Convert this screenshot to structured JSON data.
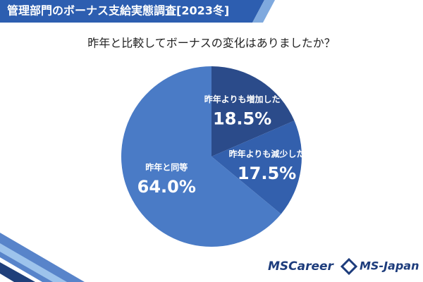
{
  "chart_data": {
    "type": "pie",
    "title": "管理部門のボーナス支給実態調査[2023冬]",
    "subtitle": "昨年と比較してボーナスの変化はありましたか？",
    "categories": [
      "昨年よりも増加した",
      "昨年よりも減少した",
      "昨年と同等"
    ],
    "values": [
      18.5,
      17.5,
      64.0
    ],
    "value_labels": [
      "18.5%",
      "17.5%",
      "64.0%"
    ],
    "colors": [
      "#2b4b8a",
      "#3360ad",
      "#4a7bc6"
    ]
  },
  "logos": [
    "MSCareer",
    "MS-Japan"
  ]
}
